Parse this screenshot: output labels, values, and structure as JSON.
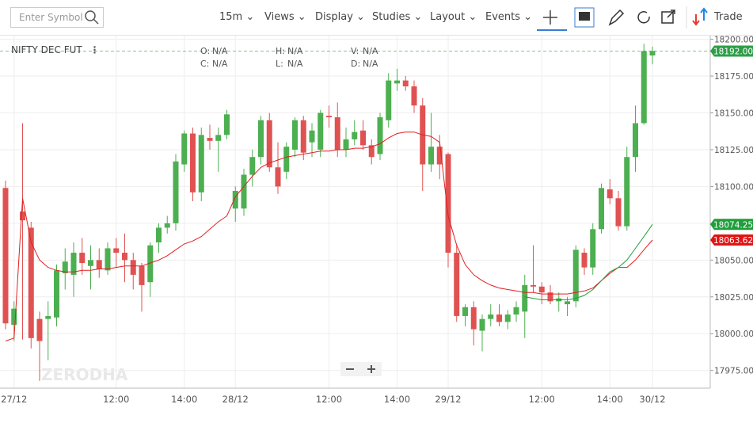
{
  "toolbar": {
    "search_placeholder": "Enter Symbol",
    "menus": [
      "15m",
      "Views",
      "Display",
      "Studies",
      "Layout",
      "Events"
    ],
    "trade": "Trade"
  },
  "legend": {
    "symbol": "NIFTY DEC FUT",
    "fields": [
      {
        "key": "O:",
        "value": "N/A"
      },
      {
        "key": "H:",
        "value": "N/A"
      },
      {
        "key": "V:",
        "value": "N/A"
      },
      {
        "key": "C:",
        "value": "N/A"
      },
      {
        "key": "L:",
        "value": "N/A"
      },
      {
        "key": "D:",
        "value": "N/A"
      }
    ]
  },
  "watermark": "ZERODHA",
  "chart_data": {
    "type": "candlestick",
    "up_color": "#4caf50",
    "down_color": "#e05252",
    "categories": [
      null,
      "27/12",
      null,
      null,
      null,
      null,
      null,
      null,
      null,
      null,
      null,
      null,
      null,
      "12:00",
      null,
      null,
      null,
      null,
      null,
      null,
      null,
      "14:00",
      null,
      null,
      null,
      null,
      null,
      "28/12",
      null,
      null,
      null,
      null,
      null,
      null,
      null,
      null,
      null,
      null,
      "12:00",
      null,
      null,
      null,
      null,
      null,
      null,
      null,
      "14:00",
      null,
      null,
      null,
      null,
      null,
      "29/12",
      null,
      null,
      null,
      null,
      null,
      null,
      null,
      null,
      null,
      null,
      "12:00",
      null,
      null,
      null,
      null,
      null,
      null,
      null,
      "14:00",
      null,
      null,
      null,
      null,
      "30/12"
    ],
    "ohlc": [
      [
        18099,
        18104,
        18003,
        18007
      ],
      [
        18006,
        18022,
        17995,
        18017
      ],
      [
        18083,
        18143,
        17996,
        18077
      ],
      [
        18072,
        18076,
        17990,
        17997
      ],
      [
        18010,
        18015,
        17968,
        17995
      ],
      [
        18010,
        18022,
        17982,
        18012
      ],
      [
        18011,
        18047,
        18005,
        18043
      ],
      [
        18041,
        18058,
        18030,
        18049
      ],
      [
        18040,
        18062,
        18025,
        18055
      ],
      [
        18055,
        18065,
        18040,
        18048
      ],
      [
        18046,
        18060,
        18030,
        18050
      ],
      [
        18050,
        18058,
        18038,
        18044
      ],
      [
        18043,
        18062,
        18040,
        18058
      ],
      [
        18058,
        18065,
        18045,
        18055
      ],
      [
        18055,
        18068,
        18035,
        18050
      ],
      [
        18050,
        18055,
        18030,
        18040
      ],
      [
        18046,
        18048,
        18015,
        18033
      ],
      [
        18035,
        18062,
        18025,
        18060
      ],
      [
        18062,
        18075,
        18055,
        18072
      ],
      [
        18072,
        18080,
        18068,
        18075
      ],
      [
        18075,
        18122,
        18070,
        18117
      ],
      [
        18115,
        18138,
        18110,
        18136
      ],
      [
        18136,
        18140,
        18090,
        18096
      ],
      [
        18096,
        18140,
        18090,
        18135
      ],
      [
        18133,
        18142,
        18125,
        18131
      ],
      [
        18131,
        18140,
        18110,
        18135
      ],
      [
        18135,
        18152,
        18132,
        18149
      ],
      [
        18085,
        18100,
        18076,
        18097
      ],
      [
        18085,
        18112,
        18080,
        18108
      ],
      [
        18108,
        18125,
        18100,
        18120
      ],
      [
        18120,
        18148,
        18115,
        18145
      ],
      [
        18145,
        18150,
        18110,
        18113
      ],
      [
        18113,
        18130,
        18095,
        18100
      ],
      [
        18110,
        18130,
        18105,
        18127
      ],
      [
        18125,
        18147,
        18120,
        18145
      ],
      [
        18145,
        18148,
        18118,
        18123
      ],
      [
        18130,
        18143,
        18120,
        18138
      ],
      [
        18125,
        18152,
        18120,
        18150
      ],
      [
        18148,
        18155,
        18140,
        18147
      ],
      [
        18147,
        18157,
        18120,
        18125
      ],
      [
        18125,
        18140,
        18120,
        18132
      ],
      [
        18132,
        18145,
        18128,
        18137
      ],
      [
        18138,
        18145,
        18125,
        18128
      ],
      [
        18128,
        18132,
        18115,
        18120
      ],
      [
        18122,
        18150,
        18118,
        18147
      ],
      [
        18145,
        18177,
        18140,
        18172
      ],
      [
        18170,
        18180,
        18165,
        18172
      ],
      [
        18172,
        18175,
        18165,
        18168
      ],
      [
        18168,
        18172,
        18150,
        18155
      ],
      [
        18155,
        18160,
        18097,
        18115
      ],
      [
        18115,
        18150,
        18110,
        18127
      ],
      [
        18127,
        18135,
        18105,
        18115
      ],
      [
        18122,
        18123,
        18045,
        18055
      ],
      [
        18055,
        18060,
        18008,
        18012
      ],
      [
        18012,
        18020,
        18005,
        18018
      ],
      [
        18018,
        18022,
        17992,
        18003
      ],
      [
        18002,
        18013,
        17988,
        18010
      ],
      [
        18010,
        18020,
        18005,
        18013
      ],
      [
        18013,
        18020,
        18005,
        18008
      ],
      [
        18008,
        18016,
        18003,
        18013
      ],
      [
        18013,
        18022,
        18008,
        18018
      ],
      [
        18015,
        18040,
        17997,
        18033
      ],
      [
        18033,
        18060,
        18028,
        18032
      ],
      [
        18032,
        18035,
        18020,
        18028
      ],
      [
        18028,
        18033,
        18020,
        18022
      ],
      [
        18022,
        18028,
        18015,
        18024
      ],
      [
        18020,
        18025,
        18012,
        18022
      ],
      [
        18022,
        18060,
        18018,
        18057
      ],
      [
        18055,
        18058,
        18040,
        18045
      ],
      [
        18045,
        18075,
        18040,
        18071
      ],
      [
        18071,
        18102,
        18068,
        18099
      ],
      [
        18098,
        18105,
        18088,
        18092
      ],
      [
        18092,
        18097,
        18070,
        18073
      ],
      [
        18073,
        18127,
        18070,
        18120
      ],
      [
        18120,
        18155,
        18110,
        18143
      ],
      [
        18143,
        18197,
        18142,
        18192
      ],
      [
        18189,
        18195,
        18183,
        18192
      ]
    ],
    "series": [
      {
        "color": "#e02020",
        "values": [
          17995,
          17997,
          18092,
          18062,
          18050,
          18045,
          18043,
          18042,
          18042,
          18043,
          18043,
          18044,
          18044,
          18045,
          18046,
          18046,
          18046,
          18048,
          18050,
          18053,
          18057,
          18061,
          18063,
          18066,
          18071,
          18076,
          18080,
          18093,
          18100,
          18107,
          18113,
          18116,
          18118,
          18120,
          18121,
          18122,
          18123,
          18124,
          18124,
          18125,
          18125,
          18126,
          18126,
          18127,
          18129,
          18133,
          18136,
          18137,
          18137,
          18135,
          18134,
          18130,
          18080,
          18060,
          18047,
          18040,
          18036,
          18033,
          18031,
          18030,
          18029,
          18028,
          18028,
          18027,
          18027,
          18027,
          18027,
          18028,
          18029,
          18031,
          18036,
          18041,
          18045,
          18045,
          18050,
          18057,
          18063.62
        ]
      },
      {
        "color": "#1e9e3a",
        "values": [
          null,
          null,
          null,
          null,
          null,
          null,
          null,
          null,
          null,
          null,
          null,
          null,
          null,
          null,
          null,
          null,
          null,
          null,
          null,
          null,
          null,
          null,
          null,
          null,
          null,
          null,
          null,
          null,
          null,
          null,
          null,
          null,
          null,
          null,
          null,
          null,
          null,
          null,
          null,
          null,
          null,
          null,
          null,
          null,
          null,
          null,
          null,
          null,
          null,
          null,
          null,
          null,
          null,
          null,
          null,
          null,
          null,
          null,
          null,
          null,
          null,
          18025,
          18024,
          18023,
          18023,
          18023,
          18023,
          18024,
          18026,
          18030,
          18036,
          18042,
          18045,
          18050,
          18058,
          18066,
          18074.25
        ]
      }
    ],
    "markers": [
      {
        "value": 18192,
        "label": "18192.00",
        "color": "#2e9e48",
        "dashed": true
      },
      {
        "value": 18074.25,
        "label": "18074.25",
        "color": "#1e9e3a"
      },
      {
        "value": 18063.62,
        "label": "18063.62",
        "color": "#e01515"
      }
    ],
    "ylim": [
      17963,
      18203
    ],
    "yticks": [
      {
        "value": 17975,
        "label": "17975.00"
      },
      {
        "value": 18000,
        "label": "18000.00"
      },
      {
        "value": 18025,
        "label": "18025.00"
      },
      {
        "value": 18050,
        "label": "18050.00"
      },
      {
        "value": 18075,
        "label": "18075.00"
      },
      {
        "value": 18100,
        "label": "18100.00"
      },
      {
        "value": 18125,
        "label": "18125.00"
      },
      {
        "value": 18150,
        "label": "18150.00"
      },
      {
        "value": 18175,
        "label": "18175.00"
      },
      {
        "value": 18200,
        "label": "18200.00"
      }
    ],
    "grid": true
  }
}
